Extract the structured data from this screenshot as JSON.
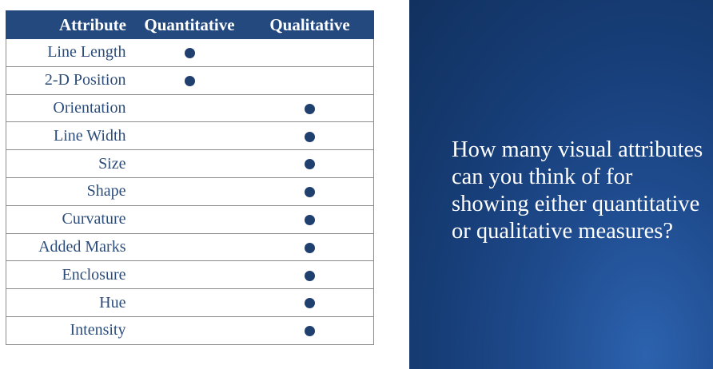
{
  "table": {
    "headers": {
      "attribute": "Attribute",
      "quantitative": "Quantitative",
      "qualitative": "Qualitative"
    },
    "rows": [
      {
        "name": "Line Length",
        "quantitative": true,
        "qualitative": false
      },
      {
        "name": "2-D Position",
        "quantitative": true,
        "qualitative": false
      },
      {
        "name": "Orientation",
        "quantitative": false,
        "qualitative": true
      },
      {
        "name": "Line Width",
        "quantitative": false,
        "qualitative": true
      },
      {
        "name": "Size",
        "quantitative": false,
        "qualitative": true
      },
      {
        "name": "Shape",
        "quantitative": false,
        "qualitative": true
      },
      {
        "name": "Curvature",
        "quantitative": false,
        "qualitative": true
      },
      {
        "name": "Added Marks",
        "quantitative": false,
        "qualitative": true
      },
      {
        "name": "Enclosure",
        "quantitative": false,
        "qualitative": true
      },
      {
        "name": "Hue",
        "quantitative": false,
        "qualitative": true
      },
      {
        "name": "Intensity",
        "quantitative": false,
        "qualitative": true
      }
    ]
  },
  "panel": {
    "question": "How many visual attributes can you think of for showing either quantitative or qualitative measures?"
  },
  "colors": {
    "header_bg": "#23497f",
    "panel_bg": "#1e4a8c",
    "dot": "#1f3f6e",
    "text": "#2c4d7a"
  }
}
